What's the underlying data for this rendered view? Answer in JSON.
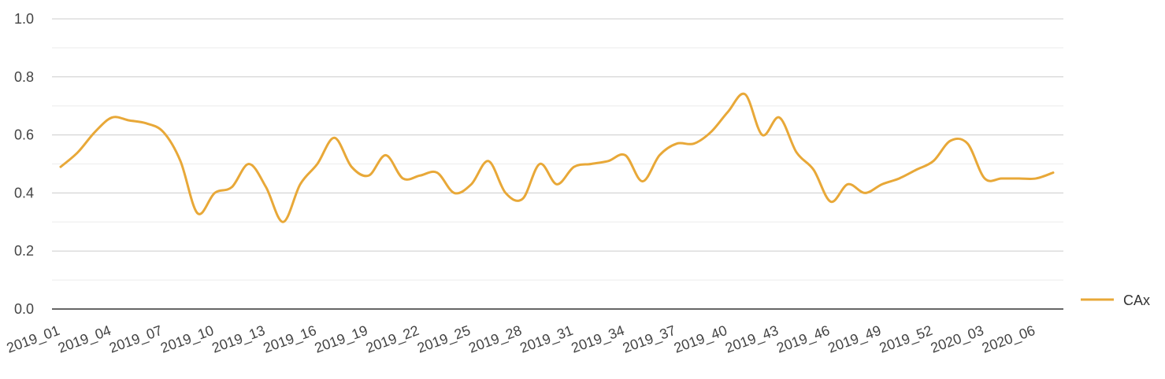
{
  "chart_data": {
    "type": "line",
    "x": [
      "2019_01",
      "2019_02",
      "2019_03",
      "2019_04",
      "2019_05",
      "2019_06",
      "2019_07",
      "2019_08",
      "2019_09",
      "2019_10",
      "2019_11",
      "2019_12",
      "2019_13",
      "2019_14",
      "2019_15",
      "2019_16",
      "2019_17",
      "2019_18",
      "2019_19",
      "2019_20",
      "2019_21",
      "2019_22",
      "2019_23",
      "2019_24",
      "2019_25",
      "2019_26",
      "2019_27",
      "2019_28",
      "2019_29",
      "2019_30",
      "2019_31",
      "2019_32",
      "2019_33",
      "2019_34",
      "2019_35",
      "2019_36",
      "2019_37",
      "2019_38",
      "2019_39",
      "2019_40",
      "2019_41",
      "2019_42",
      "2019_43",
      "2019_44",
      "2019_45",
      "2019_46",
      "2019_47",
      "2019_48",
      "2019_49",
      "2019_50",
      "2019_51",
      "2019_52",
      "2020_01",
      "2020_02",
      "2020_03",
      "2020_04",
      "2020_05",
      "2020_06",
      "2020_07"
    ],
    "x_tick_labels": [
      "2019_01",
      "2019_04",
      "2019_07",
      "2019_10",
      "2019_13",
      "2019_16",
      "2019_19",
      "2019_22",
      "2019_25",
      "2019_28",
      "2019_31",
      "2019_34",
      "2019_37",
      "2019_40",
      "2019_43",
      "2019_46",
      "2019_49",
      "2019_52",
      "2020_03",
      "2020_06"
    ],
    "series": [
      {
        "name": "CAx",
        "color": "#e8a838",
        "values": [
          0.49,
          0.54,
          0.61,
          0.66,
          0.65,
          0.64,
          0.61,
          0.51,
          0.33,
          0.4,
          0.42,
          0.5,
          0.42,
          0.3,
          0.43,
          0.5,
          0.59,
          0.49,
          0.46,
          0.53,
          0.45,
          0.46,
          0.47,
          0.4,
          0.43,
          0.51,
          0.4,
          0.38,
          0.5,
          0.43,
          0.49,
          0.5,
          0.51,
          0.53,
          0.44,
          0.53,
          0.57,
          0.57,
          0.61,
          0.68,
          0.74,
          0.6,
          0.66,
          0.54,
          0.48,
          0.37,
          0.43,
          0.4,
          0.43,
          0.45,
          0.48,
          0.51,
          0.58,
          0.57,
          0.45,
          0.45,
          0.45,
          0.45,
          0.47
        ]
      }
    ],
    "y_ticks": [
      "0.0",
      "0.2",
      "0.4",
      "0.6",
      "0.8",
      "1.0"
    ],
    "ylim": [
      0,
      1
    ],
    "grid": true,
    "legend_position": "right"
  }
}
